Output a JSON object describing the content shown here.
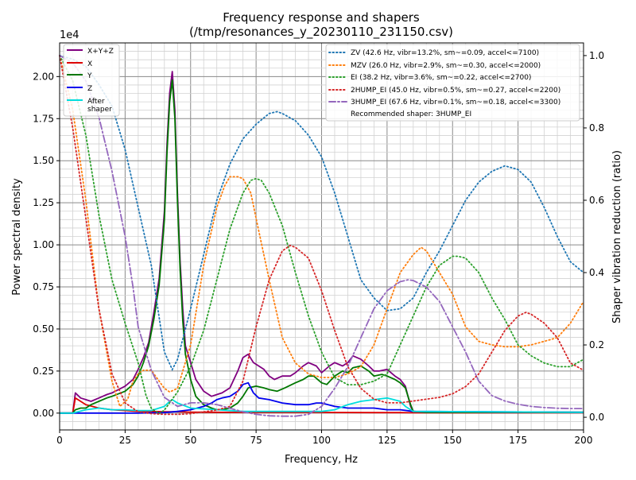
{
  "chart_data": {
    "type": "line",
    "title_line1": "Frequency response and shapers",
    "title_line2": "(/tmp/resonances_y_20230110_231150.csv)",
    "xlabel": "Frequency, Hz",
    "ylabel": "Power spectral density",
    "y2label": "Shaper vibration reduction (ratio)",
    "y_offset_label": "1e4",
    "xlim": [
      0,
      200
    ],
    "ylim": [
      -0.1,
      2.2
    ],
    "y2lim": [
      -0.035,
      1.035
    ],
    "x_ticks": [
      0,
      25,
      50,
      75,
      100,
      125,
      150,
      175,
      200
    ],
    "x_tick_labels": [
      "0",
      "25",
      "50",
      "75",
      "100",
      "125",
      "150",
      "175",
      "200"
    ],
    "y_ticks": [
      0,
      0.25,
      0.5,
      0.75,
      1.0,
      1.25,
      1.5,
      1.75,
      2.0
    ],
    "y_tick_labels": [
      "0.00",
      "0.25",
      "0.50",
      "0.75",
      "1.00",
      "1.25",
      "1.50",
      "1.75",
      "2.00"
    ],
    "y2_ticks": [
      0,
      0.2,
      0.4,
      0.6,
      0.8,
      1.0
    ],
    "y2_tick_labels": [
      "0.0",
      "0.2",
      "0.4",
      "0.6",
      "0.8",
      "1.0"
    ],
    "grid": "major and minor",
    "legend_left_position": "top-left",
    "legend_right_position": "top-right",
    "recommendation": "Recommended shaper: 3HUMP_EI",
    "psd_series": [
      {
        "name": "X+Y+Z",
        "color": "#800080",
        "x": [
          0,
          5,
          6,
          8,
          10,
          12,
          15,
          18,
          20,
          25,
          28,
          30,
          32,
          34,
          36,
          38,
          40,
          41,
          42,
          43,
          44,
          45,
          46,
          47,
          48,
          50,
          52,
          55,
          58,
          60,
          62,
          65,
          68,
          70,
          72,
          74,
          76,
          78,
          80,
          82,
          85,
          88,
          90,
          93,
          95,
          98,
          100,
          103,
          105,
          108,
          110,
          112,
          115,
          118,
          120,
          122,
          125,
          128,
          130,
          132,
          133,
          134,
          135,
          140,
          150,
          160,
          170,
          180,
          190,
          200
        ],
        "y": [
          0,
          0,
          0.12,
          0.09,
          0.08,
          0.07,
          0.09,
          0.11,
          0.12,
          0.16,
          0.2,
          0.26,
          0.33,
          0.42,
          0.6,
          0.8,
          1.2,
          1.6,
          1.9,
          2.03,
          1.8,
          1.3,
          0.9,
          0.62,
          0.4,
          0.3,
          0.2,
          0.13,
          0.1,
          0.11,
          0.12,
          0.15,
          0.25,
          0.33,
          0.35,
          0.3,
          0.28,
          0.26,
          0.22,
          0.2,
          0.22,
          0.22,
          0.24,
          0.28,
          0.3,
          0.28,
          0.24,
          0.28,
          0.3,
          0.28,
          0.3,
          0.34,
          0.32,
          0.28,
          0.25,
          0.25,
          0.26,
          0.22,
          0.2,
          0.16,
          0.1,
          0.04,
          0.01,
          0.005,
          0.005,
          0.005,
          0.005,
          0.005,
          0.005,
          0.005
        ]
      },
      {
        "name": "X",
        "color": "#dd0000",
        "x": [
          0,
          5,
          6,
          8,
          10,
          15,
          20,
          25,
          30,
          35,
          40,
          45,
          50,
          60,
          80,
          100,
          120,
          130,
          135,
          200
        ],
        "y": [
          0,
          0,
          0.09,
          0.07,
          0.05,
          0.03,
          0.02,
          0.015,
          0.01,
          0.01,
          0.008,
          0.008,
          0.006,
          0.005,
          0.004,
          0.004,
          0.003,
          0.003,
          0.002,
          0.002
        ]
      },
      {
        "name": "Y",
        "color": "#007700",
        "x": [
          0,
          5,
          6,
          8,
          10,
          12,
          15,
          18,
          20,
          25,
          28,
          30,
          32,
          34,
          36,
          38,
          40,
          41,
          42,
          43,
          44,
          45,
          46,
          47,
          48,
          50,
          52,
          55,
          58,
          60,
          62,
          65,
          68,
          70,
          72,
          75,
          78,
          80,
          83,
          86,
          90,
          93,
          95,
          97,
          100,
          102,
          105,
          108,
          110,
          112,
          115,
          118,
          120,
          123,
          125,
          128,
          130,
          132,
          133,
          134,
          135,
          140,
          150,
          160,
          170,
          180,
          190,
          200
        ],
        "y": [
          0,
          0,
          0.02,
          0.03,
          0.03,
          0.05,
          0.07,
          0.09,
          0.1,
          0.13,
          0.17,
          0.22,
          0.3,
          0.4,
          0.56,
          0.76,
          1.15,
          1.55,
          1.85,
          1.98,
          1.75,
          1.25,
          0.85,
          0.55,
          0.35,
          0.2,
          0.1,
          0.05,
          0.03,
          0.02,
          0.02,
          0.03,
          0.06,
          0.1,
          0.15,
          0.16,
          0.15,
          0.14,
          0.13,
          0.15,
          0.18,
          0.2,
          0.22,
          0.22,
          0.18,
          0.17,
          0.22,
          0.25,
          0.24,
          0.27,
          0.28,
          0.25,
          0.22,
          0.23,
          0.22,
          0.2,
          0.18,
          0.15,
          0.1,
          0.05,
          0.01,
          0.005,
          0.005,
          0.005,
          0.005,
          0.005,
          0.005,
          0.005
        ]
      },
      {
        "name": "Z",
        "color": "#0000ee",
        "x": [
          0,
          5,
          10,
          20,
          30,
          40,
          45,
          50,
          55,
          58,
          60,
          62,
          65,
          68,
          70,
          72,
          74,
          76,
          80,
          85,
          90,
          95,
          98,
          100,
          105,
          110,
          115,
          120,
          125,
          130,
          135,
          200
        ],
        "y": [
          0,
          0,
          0,
          0,
          0,
          0.003,
          0.01,
          0.02,
          0.04,
          0.06,
          0.08,
          0.09,
          0.1,
          0.13,
          0.17,
          0.18,
          0.12,
          0.09,
          0.08,
          0.06,
          0.05,
          0.05,
          0.06,
          0.06,
          0.04,
          0.03,
          0.03,
          0.03,
          0.02,
          0.02,
          0.01,
          0.005
        ]
      },
      {
        "name": "After\nshaper",
        "color": "#00dddd",
        "x": [
          0,
          5,
          10,
          15,
          20,
          25,
          30,
          35,
          40,
          42,
          43,
          45,
          50,
          60,
          70,
          80,
          90,
          100,
          105,
          110,
          115,
          120,
          125,
          130,
          132,
          135,
          200
        ],
        "y": [
          0,
          0,
          0.02,
          0.03,
          0.02,
          0.02,
          0.015,
          0.015,
          0.04,
          0.07,
          0.08,
          0.06,
          0.03,
          0.02,
          0.01,
          0.01,
          0.01,
          0.01,
          0.02,
          0.05,
          0.07,
          0.08,
          0.09,
          0.07,
          0.04,
          0.01,
          0.005
        ]
      }
    ],
    "shaper_series": [
      {
        "name": "ZV (42.6 Hz, vibr=13.2%, sm~=0.09, accel<=7100)",
        "color": "#1f77b4",
        "x": [
          0,
          5,
          10,
          15,
          20,
          25,
          30,
          35,
          40,
          43,
          45,
          50,
          55,
          60,
          65,
          70,
          75,
          80,
          83,
          85,
          90,
          95,
          100,
          105,
          110,
          115,
          120,
          125,
          130,
          135,
          140,
          145,
          150,
          155,
          160,
          165,
          170,
          175,
          180,
          185,
          190,
          195,
          200
        ],
        "y": [
          1.0,
          0.99,
          0.97,
          0.92,
          0.86,
          0.74,
          0.58,
          0.42,
          0.18,
          0.132,
          0.16,
          0.3,
          0.45,
          0.6,
          0.7,
          0.77,
          0.81,
          0.84,
          0.845,
          0.84,
          0.82,
          0.78,
          0.72,
          0.62,
          0.5,
          0.38,
          0.33,
          0.295,
          0.3,
          0.33,
          0.4,
          0.46,
          0.53,
          0.6,
          0.65,
          0.68,
          0.695,
          0.685,
          0.65,
          0.58,
          0.5,
          0.43,
          0.4
        ]
      },
      {
        "name": "MZV (26.0 Hz, vibr=2.9%, sm~=0.30, accel<=2000)",
        "color": "#ff7f0e",
        "x": [
          0,
          5,
          10,
          15,
          20,
          23,
          26,
          28,
          30,
          32,
          35,
          38,
          40,
          42,
          45,
          50,
          55,
          60,
          63,
          65,
          68,
          70,
          73,
          75,
          80,
          85,
          90,
          95,
          100,
          105,
          110,
          115,
          120,
          125,
          130,
          135,
          138,
          140,
          145,
          150,
          155,
          160,
          165,
          170,
          175,
          180,
          185,
          190,
          195,
          200
        ],
        "y": [
          1.0,
          0.85,
          0.6,
          0.3,
          0.1,
          0.03,
          0.05,
          0.1,
          0.12,
          0.13,
          0.13,
          0.1,
          0.08,
          0.07,
          0.08,
          0.2,
          0.42,
          0.58,
          0.64,
          0.665,
          0.665,
          0.66,
          0.62,
          0.55,
          0.38,
          0.22,
          0.15,
          0.12,
          0.11,
          0.11,
          0.12,
          0.14,
          0.2,
          0.3,
          0.4,
          0.45,
          0.47,
          0.46,
          0.4,
          0.34,
          0.25,
          0.21,
          0.2,
          0.195,
          0.195,
          0.2,
          0.21,
          0.22,
          0.26,
          0.32
        ]
      },
      {
        "name": "EI (38.2 Hz, vibr=3.6%, sm~=0.22, accel<=2700)",
        "color": "#2ca02c",
        "x": [
          0,
          5,
          10,
          15,
          20,
          25,
          30,
          33,
          35,
          38,
          40,
          45,
          50,
          55,
          60,
          65,
          70,
          73,
          75,
          77,
          80,
          85,
          90,
          95,
          100,
          105,
          110,
          115,
          120,
          125,
          130,
          135,
          140,
          145,
          150,
          152,
          155,
          160,
          165,
          170,
          175,
          180,
          185,
          190,
          195,
          200
        ],
        "y": [
          1.0,
          0.93,
          0.78,
          0.56,
          0.38,
          0.26,
          0.15,
          0.06,
          0.025,
          0.01,
          0.02,
          0.07,
          0.14,
          0.24,
          0.38,
          0.52,
          0.62,
          0.655,
          0.66,
          0.655,
          0.62,
          0.53,
          0.4,
          0.28,
          0.18,
          0.11,
          0.09,
          0.09,
          0.1,
          0.12,
          0.2,
          0.28,
          0.36,
          0.42,
          0.445,
          0.445,
          0.44,
          0.4,
          0.33,
          0.27,
          0.2,
          0.17,
          0.15,
          0.14,
          0.14,
          0.16
        ]
      },
      {
        "name": "2HUMP_EI (45.0 Hz, vibr=0.5%, sm~=0.27, accel<=2200)",
        "color": "#d62728",
        "x": [
          0,
          5,
          10,
          15,
          20,
          25,
          30,
          35,
          40,
          45,
          50,
          55,
          60,
          65,
          70,
          75,
          80,
          85,
          88,
          90,
          95,
          100,
          105,
          110,
          115,
          120,
          125,
          130,
          135,
          140,
          145,
          150,
          155,
          160,
          165,
          170,
          175,
          178,
          180,
          185,
          190,
          195,
          200
        ],
        "y": [
          1.0,
          0.8,
          0.55,
          0.3,
          0.12,
          0.04,
          0.015,
          0.01,
          0.008,
          0.008,
          0.01,
          0.015,
          0.02,
          0.03,
          0.1,
          0.25,
          0.38,
          0.46,
          0.475,
          0.47,
          0.44,
          0.35,
          0.24,
          0.14,
          0.08,
          0.05,
          0.04,
          0.04,
          0.045,
          0.05,
          0.055,
          0.065,
          0.085,
          0.12,
          0.18,
          0.24,
          0.28,
          0.29,
          0.285,
          0.26,
          0.22,
          0.15,
          0.13
        ]
      },
      {
        "name": "3HUMP_EI (67.6 Hz, vibr=0.1%, sm~=0.18, accel<=3300)",
        "color": "#9467bd",
        "dashed": "dashdot",
        "x": [
          0,
          5,
          10,
          15,
          20,
          25,
          28,
          30,
          35,
          40,
          45,
          50,
          55,
          60,
          65,
          70,
          75,
          80,
          85,
          90,
          95,
          100,
          105,
          110,
          115,
          120,
          125,
          130,
          133,
          135,
          140,
          145,
          150,
          155,
          160,
          165,
          170,
          175,
          180,
          185,
          190,
          195,
          200
        ],
        "y": [
          1.0,
          0.98,
          0.93,
          0.83,
          0.68,
          0.5,
          0.36,
          0.25,
          0.13,
          0.055,
          0.03,
          0.04,
          0.04,
          0.035,
          0.025,
          0.015,
          0.008,
          0.004,
          0.003,
          0.003,
          0.008,
          0.03,
          0.08,
          0.14,
          0.22,
          0.3,
          0.35,
          0.375,
          0.38,
          0.378,
          0.36,
          0.32,
          0.25,
          0.18,
          0.1,
          0.06,
          0.045,
          0.036,
          0.03,
          0.027,
          0.025,
          0.024,
          0.024
        ]
      }
    ]
  }
}
